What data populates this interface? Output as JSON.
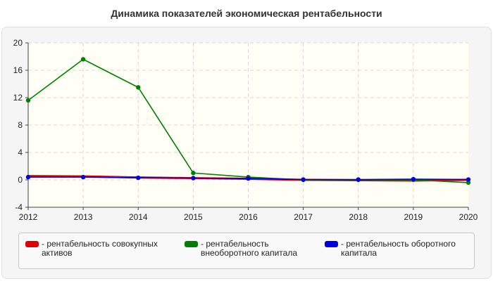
{
  "title": "Динамика показателей экономическая рентабельности",
  "colors": {
    "series_asset": "#e00000",
    "series_noncurrent": "#008000",
    "series_current": "#0000e0",
    "plot_bg": "#fffff5",
    "panel_bg": "#f5f5f5"
  },
  "legend": {
    "items": [
      {
        "label": "- рентабельность совокупных активов"
      },
      {
        "label": "- рентабельность внеоборотного капитала"
      },
      {
        "label": "- рентабельность оборотного капитала"
      }
    ]
  },
  "chart_data": {
    "type": "line",
    "title": "Динамика показателей экономическая рентабельности",
    "xlabel": "",
    "ylabel": "",
    "categories": [
      "2012",
      "2013",
      "2014",
      "2015",
      "2016",
      "2017",
      "2018",
      "2019",
      "2020"
    ],
    "ylim": [
      -4,
      20
    ],
    "yticks": [
      -4,
      0,
      4,
      8,
      12,
      16,
      20
    ],
    "grid": true,
    "legend_position": "bottom",
    "series": [
      {
        "name": "рентабельность совокупных активов",
        "color": "#e00000",
        "values": [
          0.55,
          0.5,
          0.35,
          0.25,
          0.15,
          0.0,
          -0.05,
          -0.1,
          0.0
        ],
        "markers": false
      },
      {
        "name": "рентабельность внеоборотного капитала",
        "color": "#008000",
        "values": [
          11.6,
          17.6,
          13.5,
          1.0,
          0.4,
          0.0,
          0.0,
          0.0,
          -0.4
        ],
        "markers": true
      },
      {
        "name": "рентабельность оборотного капитала",
        "color": "#0000e0",
        "values": [
          0.4,
          0.4,
          0.3,
          0.25,
          0.2,
          0.05,
          0.05,
          0.1,
          0.05
        ],
        "markers": true
      }
    ]
  }
}
